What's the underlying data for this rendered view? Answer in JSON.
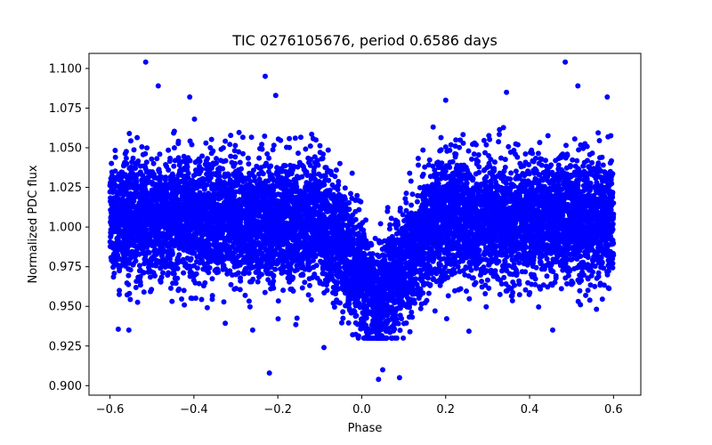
{
  "chart_data": {
    "type": "scatter",
    "title": "TIC 0276105676, period 0.6586 days",
    "xlabel": "Phase",
    "ylabel": "Normalized PDC flux",
    "xlim": [
      -0.65,
      0.665
    ],
    "ylim": [
      0.894,
      1.1095
    ],
    "x_ticks": [
      -0.6,
      -0.4,
      -0.2,
      0.0,
      0.2,
      0.4,
      0.6
    ],
    "x_tick_labels": [
      "−0.6",
      "−0.4",
      "−0.2",
      "0.0",
      "0.2",
      "0.4",
      "0.6"
    ],
    "y_ticks": [
      0.9,
      0.925,
      0.95,
      0.975,
      1.0,
      1.025,
      1.05,
      1.075,
      1.1
    ],
    "y_tick_labels": [
      "0.900",
      "0.925",
      "0.950",
      "0.975",
      "1.000",
      "1.025",
      "1.050",
      "1.075",
      "1.100"
    ],
    "marker_color": "#0000ff",
    "grid": false,
    "series": [
      {
        "name": "PDC flux",
        "phase_range": [
          -0.6,
          0.6
        ],
        "baseline_flux": 1.005,
        "scatter_sigma": 0.019,
        "transit_center": 0.04,
        "transit_depth": 0.052,
        "transit_halfwidth": 0.14,
        "outliers": [
          {
            "x": -0.515,
            "y": 1.104
          },
          {
            "x": 0.485,
            "y": 1.104
          },
          {
            "x": -0.485,
            "y": 1.089
          },
          {
            "x": 0.515,
            "y": 1.089
          },
          {
            "x": -0.23,
            "y": 1.095
          },
          {
            "x": -0.205,
            "y": 1.083
          },
          {
            "x": 0.585,
            "y": 1.082
          },
          {
            "x": -0.41,
            "y": 1.082
          },
          {
            "x": 0.345,
            "y": 1.085
          },
          {
            "x": 0.2,
            "y": 1.08
          },
          {
            "x": -0.22,
            "y": 0.908
          },
          {
            "x": 0.04,
            "y": 0.904
          },
          {
            "x": 0.05,
            "y": 0.91
          },
          {
            "x": 0.09,
            "y": 0.905
          },
          {
            "x": -0.26,
            "y": 0.935
          },
          {
            "x": -0.555,
            "y": 0.935
          },
          {
            "x": 0.455,
            "y": 0.935
          },
          {
            "x": -0.09,
            "y": 0.924
          }
        ]
      }
    ]
  }
}
